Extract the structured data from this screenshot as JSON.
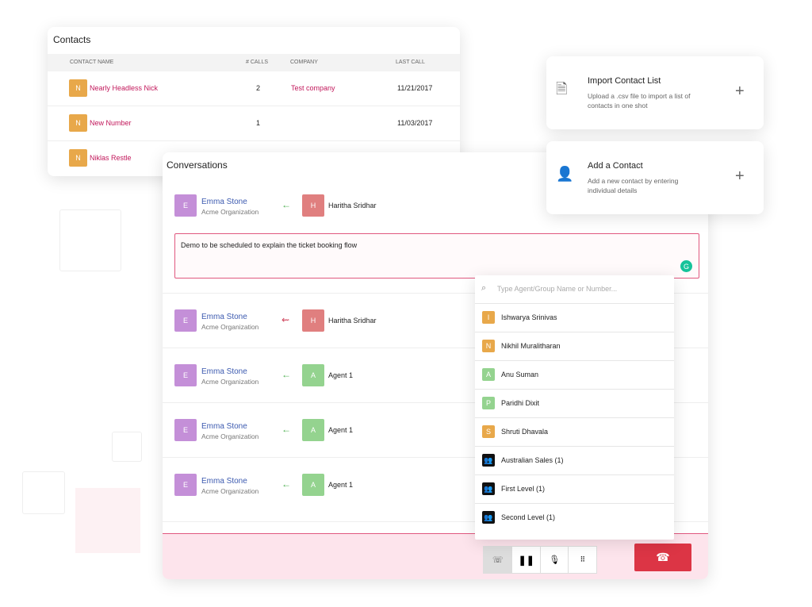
{
  "contacts": {
    "title": "Contacts",
    "columns": [
      "CONTACT NAME",
      "# CALLS",
      "COMPANY",
      "LAST CALL"
    ],
    "rows": [
      {
        "initial": "N",
        "name": "Nearly Headless Nick",
        "calls": "2",
        "company": "Test company",
        "last_call": "11/21/2017"
      },
      {
        "initial": "N",
        "name": "New Number",
        "calls": "1",
        "last_call": "11/03/2017"
      },
      {
        "initial": "N",
        "name": "Niklas Restle"
      }
    ]
  },
  "conversations": {
    "title": "Conversations",
    "note": "Demo to be scheduled to explain the ticket booking flow",
    "rows": [
      {
        "from_initial": "E",
        "from_name": "Emma Stone",
        "from_org": "Acme Organization",
        "arrow": "in",
        "to_initial": "H",
        "to_name": "Haritha Sridhar",
        "to_color": "#e07f7f"
      },
      {
        "from_initial": "E",
        "from_name": "Emma Stone",
        "from_org": "Acme Organization",
        "arrow": "missed",
        "to_initial": "H",
        "to_name": "Haritha Sridhar",
        "to_color": "#e07f7f"
      },
      {
        "from_initial": "E",
        "from_name": "Emma Stone",
        "from_org": "Acme Organization",
        "arrow": "in",
        "to_initial": "A",
        "to_name": "Agent 1",
        "to_color": "#94d38f"
      },
      {
        "from_initial": "E",
        "from_name": "Emma Stone",
        "from_org": "Acme Organization",
        "arrow": "in",
        "to_initial": "A",
        "to_name": "Agent 1",
        "to_color": "#94d38f"
      },
      {
        "from_initial": "E",
        "from_name": "Emma Stone",
        "from_org": "Acme Organization",
        "arrow": "in",
        "to_initial": "A",
        "to_name": "Agent 1",
        "to_color": "#94d38f"
      }
    ]
  },
  "transfer": {
    "placeholder": "Type Agent/Group Name or Number...",
    "items": [
      {
        "initial": "I",
        "name": "Ishwarya Srinivas",
        "color": "#e8a84a"
      },
      {
        "initial": "N",
        "name": "Nikhil Muralitharan",
        "color": "#e8a84a"
      },
      {
        "initial": "A",
        "name": "Anu Suman",
        "color": "#94d38f"
      },
      {
        "initial": "P",
        "name": "Paridhi Dixit",
        "color": "#94d38f"
      },
      {
        "initial": "S",
        "name": "Shruti Dhavala",
        "color": "#e8a84a"
      },
      {
        "name": "Australian Sales (1)"
      },
      {
        "name": "First Level (1)"
      },
      {
        "name": "Second Level (1)"
      }
    ]
  },
  "cards": [
    {
      "title": "Import Contact List",
      "description": "Upload a .csv file to import a list of contacts in one shot"
    },
    {
      "title": "Add a Contact",
      "description": "Add a new contact by entering individual details"
    }
  ]
}
